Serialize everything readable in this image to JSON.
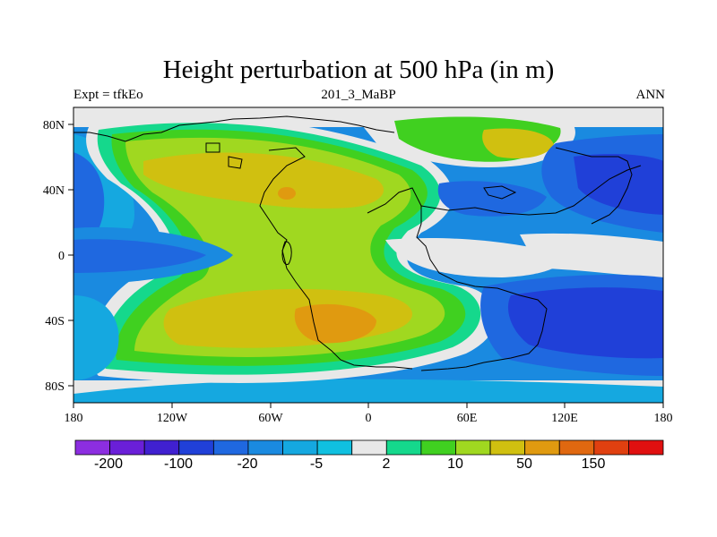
{
  "chart_data": {
    "type": "heatmap",
    "title": "Height perturbation at 500 hPa (in m)",
    "left_string": "Expt = tfkEo",
    "center_string": "201_3_MaBP",
    "right_string": "ANN",
    "x_ticks": [
      "180",
      "120W",
      "60W",
      "0",
      "60E",
      "120E",
      "180"
    ],
    "y_ticks": [
      "80N",
      "40N",
      "0",
      "40S",
      "80S"
    ],
    "xlim": [
      -180,
      180
    ],
    "ylim": [
      -90,
      90
    ],
    "colorbar": {
      "colors": [
        "#8c2ee0",
        "#6a1fd8",
        "#4020d0",
        "#2040d8",
        "#1f68e0",
        "#1a8ae0",
        "#15a8e0",
        "#10c0e0",
        "#e8e8e8",
        "#15d88c",
        "#40d020",
        "#a0d820",
        "#d0c010",
        "#e09a10",
        "#e06810",
        "#e04010",
        "#e01010"
      ],
      "labels": [
        "-200",
        "-100",
        "-20",
        "-5",
        "2",
        "10",
        "50",
        "150"
      ]
    },
    "series_note": ""
  },
  "colors": {
    "frame": "#000000",
    "coast": "#000000"
  }
}
